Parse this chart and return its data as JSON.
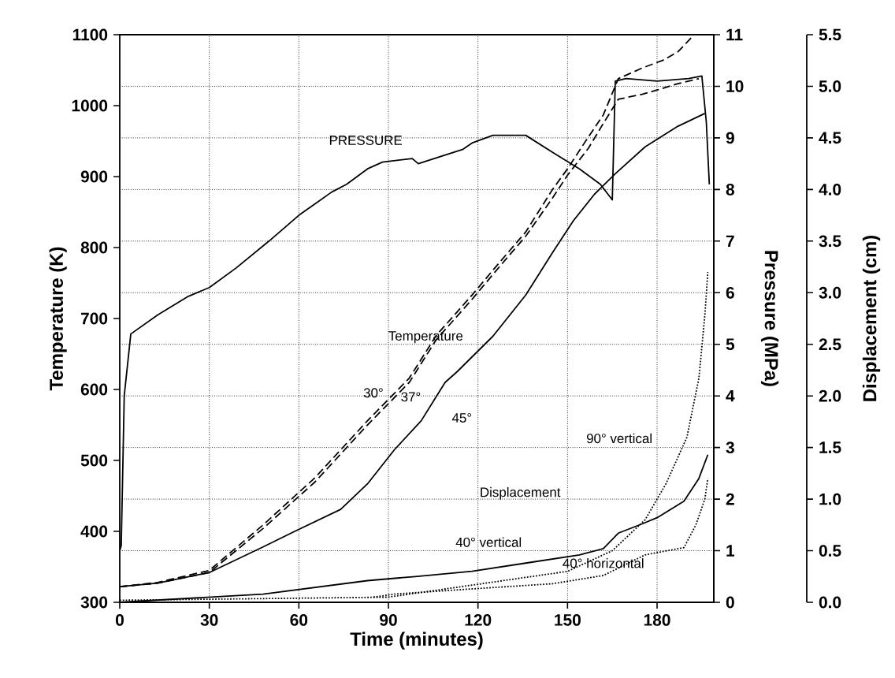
{
  "chart_data": {
    "type": "line",
    "xlabel": "Time (minutes)",
    "ylabel": "Temperature (K)",
    "y2label": "Pressure (MPa)",
    "y3label": "Displacement (cm)",
    "xlim": [
      0,
      199
    ],
    "xticks": [
      0,
      30,
      60,
      90,
      120,
      150,
      180
    ],
    "ylim": [
      300,
      1100
    ],
    "yticks": [
      300,
      400,
      500,
      600,
      700,
      800,
      900,
      1000,
      1100
    ],
    "y2lim": [
      0,
      11
    ],
    "y2ticks": [
      0,
      1,
      2,
      3,
      4,
      5,
      6,
      7,
      8,
      9,
      10,
      11
    ],
    "y3lim": [
      0,
      5.5
    ],
    "y3ticks": [
      {
        "value": 0,
        "label": "0.0"
      },
      0.5,
      {
        "value": 1,
        "label": "1.0"
      },
      1.5,
      {
        "value": 2,
        "label": "2.0"
      },
      2.5,
      {
        "value": 3,
        "label": "3.0"
      },
      3.5,
      {
        "value": 4,
        "label": "4.0"
      },
      4.5,
      {
        "value": 5,
        "label": "5.0"
      },
      5.5
    ],
    "grid": true,
    "series": [
      {
        "name": "PRESSURE",
        "axis": "y2",
        "color": "#000000",
        "line_style": "solid",
        "x": [
          0,
          0.5,
          1.5,
          3.7,
          12.7,
          23,
          30,
          39,
          50,
          60,
          71,
          76,
          83,
          88,
          98,
          100,
          108,
          115,
          118,
          125,
          136,
          145,
          154,
          161,
          165,
          166,
          169.6,
          180,
          190.6,
          195,
          196.5,
          197.5
        ],
        "values": [
          1.0,
          1.1,
          4.0,
          5.2,
          5.57,
          5.93,
          6.1,
          6.48,
          7.0,
          7.5,
          7.95,
          8.1,
          8.4,
          8.53,
          8.6,
          8.5,
          8.65,
          8.78,
          8.9,
          9.05,
          9.05,
          8.72,
          8.4,
          8.1,
          7.8,
          10.1,
          10.15,
          10.1,
          10.15,
          10.2,
          9.3,
          8.1
        ]
      },
      {
        "name": "30°",
        "color": "#000000",
        "line_style": "dashed",
        "x": [
          0,
          12.7,
          30,
          48,
          65.5,
          83,
          97,
          106,
          118,
          127,
          136,
          145,
          150,
          157,
          162,
          167,
          175,
          182,
          187,
          192
        ],
        "values": [
          322,
          328,
          345,
          409,
          476,
          556,
          616,
          676,
          733,
          778,
          822,
          882,
          911,
          956,
          987,
          1038,
          1053,
          1064,
          1076,
          1098
        ]
      },
      {
        "name": "37°",
        "color": "#000000",
        "line_style": "dashed",
        "x": [
          0,
          12.7,
          30,
          48,
          65.5,
          83,
          97,
          106,
          118,
          127,
          136,
          145,
          150,
          157,
          162,
          167,
          175,
          180,
          187,
          194
        ],
        "values": [
          322,
          327,
          342,
          404,
          470,
          550,
          610,
          670,
          727,
          772,
          816,
          870,
          902,
          940,
          975,
          1009,
          1016,
          1022,
          1031,
          1038
        ]
      },
      {
        "name": "45°",
        "color": "#000000",
        "line_style": "solid",
        "x": [
          0,
          12.7,
          30,
          48,
          58.6,
          74,
          83,
          92,
          101,
          109,
          113,
          125,
          136,
          145,
          152,
          159,
          166,
          176,
          187,
          196
        ],
        "values": [
          322,
          327,
          342,
          378,
          400,
          431,
          467,
          515,
          556,
          610,
          625,
          675,
          733,
          793,
          838,
          875,
          904,
          942,
          971,
          989
        ]
      },
      {
        "name": "90° vertical",
        "axis": "y3",
        "color": "#000000",
        "line_style": "dotted",
        "x": [
          0,
          90,
          150,
          165,
          176,
          183,
          190,
          194,
          196,
          197
        ],
        "values": [
          0.02,
          0.05,
          0.3,
          0.5,
          0.8,
          1.15,
          1.6,
          2.17,
          2.78,
          3.2
        ]
      },
      {
        "name": "40° vertical",
        "axis": "y3",
        "color": "#000000",
        "line_style": "solid",
        "x": [
          0,
          48,
          83,
          99,
          118,
          136,
          154,
          162,
          167,
          175,
          180,
          189,
          194,
          197
        ],
        "values": [
          0,
          0.08,
          0.21,
          0.25,
          0.3,
          0.38,
          0.46,
          0.52,
          0.67,
          0.76,
          0.82,
          0.98,
          1.2,
          1.43
        ]
      },
      {
        "name": "40° horizontal",
        "axis": "y3",
        "color": "#000000",
        "line_style": "dotted",
        "x": [
          85,
          92,
          118,
          145,
          162,
          176,
          189,
          193,
          196,
          197
        ],
        "values": [
          0.05,
          0.08,
          0.13,
          0.18,
          0.26,
          0.46,
          0.53,
          0.75,
          1.0,
          1.2
        ]
      }
    ],
    "annotations": [
      "Temperature",
      "Displacement"
    ]
  }
}
